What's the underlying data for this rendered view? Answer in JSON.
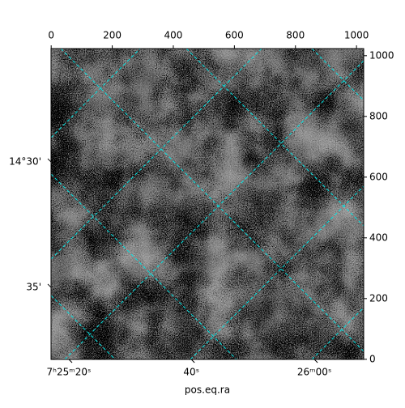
{
  "chart_data": {
    "type": "image",
    "xlabel": "pos.eq.ra",
    "xlim": [
      -0.5,
      1023.5
    ],
    "ylim": [
      -0.5,
      1023.5
    ],
    "xticks": [
      0,
      200,
      400,
      600,
      800,
      1000
    ],
    "yticks": [
      0,
      200,
      400,
      600,
      800,
      1000
    ],
    "world_xticks": [
      {
        "value": 58,
        "label": "7ʰ25ᵐ20ˢ"
      },
      {
        "value": 459,
        "label": "40ˢ"
      },
      {
        "value": 862,
        "label": "26ᵐ00ˢ"
      }
    ],
    "world_yticks": [
      {
        "value": 650,
        "label": "14°30'"
      },
      {
        "value": 237,
        "label": "35'"
      }
    ],
    "grid_color": "#00e5e5"
  }
}
